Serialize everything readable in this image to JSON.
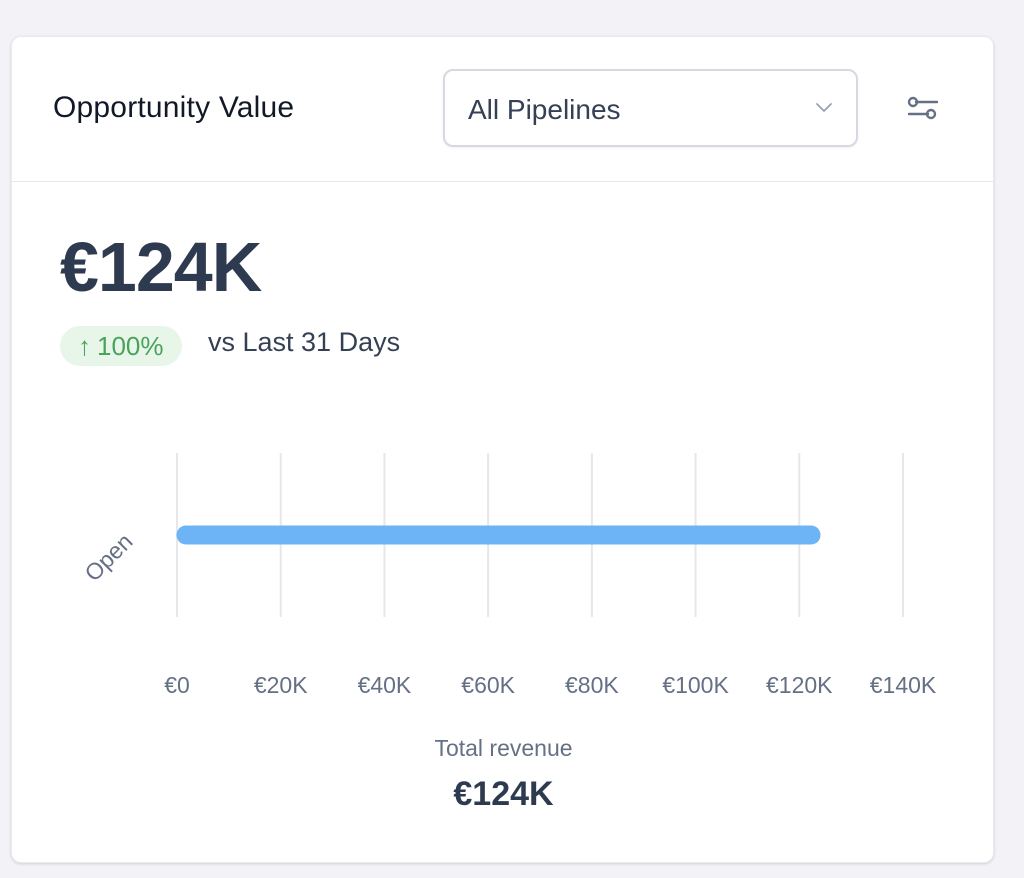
{
  "widget": {
    "title": "Opportunity Value",
    "pipeline_select": {
      "value": "All Pipelines",
      "icon": "chevron-down-icon"
    },
    "filter_icon": "filter-sliders-icon"
  },
  "summary": {
    "value": "€124K",
    "change": "100%",
    "change_direction": "up",
    "change_color": "#4aa35b",
    "compare_text": "vs Last 31 Days"
  },
  "chart_data": {
    "type": "bar",
    "orientation": "horizontal",
    "categories": [
      "Open"
    ],
    "values": [
      124000
    ],
    "xlim": [
      0,
      140000
    ],
    "x_ticks": [
      0,
      20000,
      40000,
      60000,
      80000,
      100000,
      120000,
      140000
    ],
    "x_tick_labels": [
      "€0",
      "€20K",
      "€40K",
      "€60K",
      "€80K",
      "€100K",
      "€120K",
      "€140K"
    ],
    "grid": true,
    "bar_color": "#6cb4f5",
    "grid_color": "#e5e7eb"
  },
  "footer": {
    "label": "Total revenue",
    "value": "€124K"
  }
}
